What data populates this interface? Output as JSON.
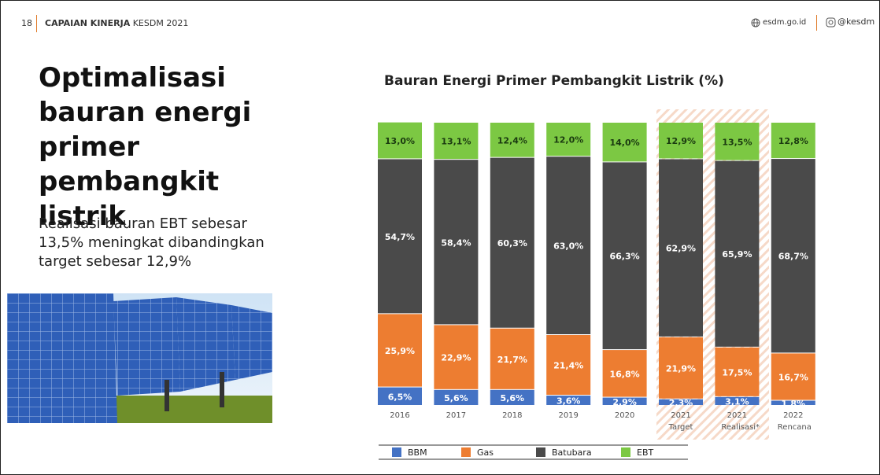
{
  "header": {
    "page_number": "18",
    "title_bold": "CAPAIAN KINERJA",
    "title_rest": "KESDM 2021",
    "website": "esdm.go.id",
    "social": "@kesdm"
  },
  "heading": "Optimalisasi bauran energi primer pembangkit listrik",
  "description": "Realisasi bauran EBT sebesar 13,5% meningkat dibandingkan target sebesar 12,9%",
  "chart_data": {
    "type": "stacked-bar",
    "title": "Bauran Energi Primer Pembangkit Listrik (%)",
    "categories": [
      "2016",
      "2017",
      "2018",
      "2019",
      "2020",
      "2021 Target",
      "2021 Realisasi*",
      "2022 Rencana"
    ],
    "series": [
      {
        "name": "BBM",
        "color": "#4472c4",
        "values": [
          6.5,
          5.6,
          5.6,
          3.6,
          2.9,
          2.3,
          3.1,
          1.8
        ],
        "value_labels": [
          "6,5%",
          "5,6%",
          "5,6%",
          "3,6%",
          "2,9%",
          "2,3%",
          "3,1%",
          "1,8%"
        ]
      },
      {
        "name": "Gas",
        "color": "#ed7d31",
        "values": [
          25.9,
          22.9,
          21.7,
          21.4,
          16.8,
          21.9,
          17.5,
          16.7
        ],
        "value_labels": [
          "25,9%",
          "22,9%",
          "21,7%",
          "21,4%",
          "16,8%",
          "21,9%",
          "17,5%",
          "16,7%"
        ]
      },
      {
        "name": "Batubara",
        "color": "#4a4a4a",
        "values": [
          54.7,
          58.4,
          60.3,
          63.0,
          66.3,
          62.9,
          65.9,
          68.7
        ],
        "value_labels": [
          "54,7%",
          "58,4%",
          "60,3%",
          "63,0%",
          "66,3%",
          "62,9%",
          "65,9%",
          "68,7%"
        ]
      },
      {
        "name": "EBT",
        "color": "#7cc843",
        "values": [
          13.0,
          13.1,
          12.4,
          12.0,
          14.0,
          12.9,
          13.5,
          12.8
        ],
        "value_labels": [
          "13,0%",
          "13,1%",
          "12,4%",
          "12,0%",
          "14,0%",
          "12,9%",
          "13,5%",
          "12,8%"
        ]
      }
    ]
  }
}
